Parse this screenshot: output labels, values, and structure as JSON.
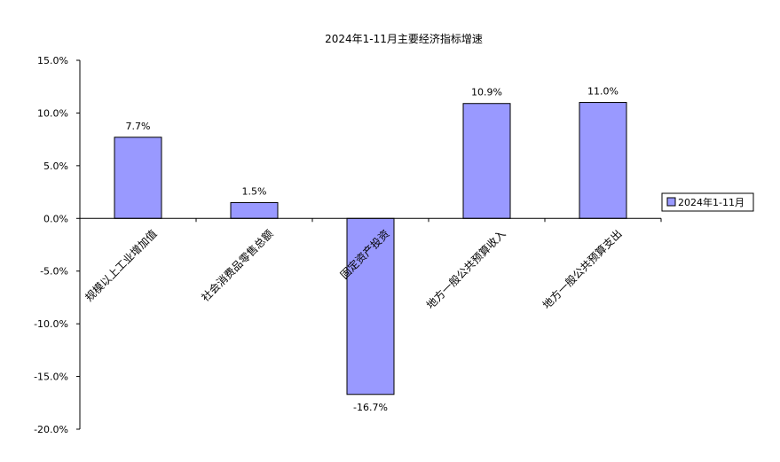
{
  "chart_data": {
    "type": "bar",
    "title": "2024年1-11月主要经济指标增速",
    "categories": [
      "规模以上工业增加值",
      "社会消费品零售总额",
      "固定资产投资",
      "地方一般公共预算收入",
      "地方一般公共预算支出"
    ],
    "series": [
      {
        "name": "2024年1-11月",
        "values": [
          7.7,
          1.5,
          -16.7,
          10.9,
          11.0
        ],
        "labels": [
          "7.7%",
          "1.5%",
          "-16.7%",
          "10.9%",
          "11.0%"
        ],
        "color": "#9999ff"
      }
    ],
    "ylim": [
      -20,
      15
    ],
    "yticks": [
      15,
      10,
      5,
      0,
      -5,
      -10,
      -15,
      -20
    ],
    "ytick_labels": [
      "15.0%",
      "10.0%",
      "5.0%",
      "0.0%",
      "-5.0%",
      "-10.0%",
      "-15.0%",
      "-20.0%"
    ],
    "xlabel": "",
    "ylabel": "",
    "grid": false,
    "legend_position": "right"
  }
}
